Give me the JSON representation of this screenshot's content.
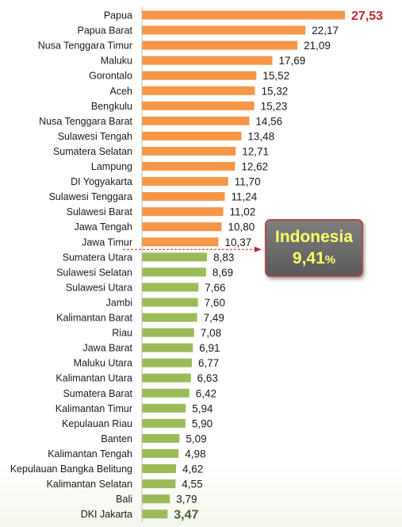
{
  "chart_data": {
    "type": "bar",
    "orientation": "horizontal",
    "categories": [
      "Papua",
      "Papua Barat",
      "Nusa Tenggara Timur",
      "Maluku",
      "Gorontalo",
      "Aceh",
      "Bengkulu",
      "Nusa Tenggara Barat",
      "Sulawesi Tengah",
      "Sumatera Selatan",
      "Lampung",
      "DI Yogyakarta",
      "Sulawesi Tenggara",
      "Sulawesi Barat",
      "Jawa Tengah",
      "Jawa Timur",
      "Sumatera Utara",
      "Sulawesi Selatan",
      "Sulawesi Utara",
      "Jambi",
      "Kalimantan Barat",
      "Riau",
      "Jawa Barat",
      "Maluku Utara",
      "Kalimantan Utara",
      "Sumatera Barat",
      "Kalimantan Timur",
      "Kepulauan Riau",
      "Banten",
      "Kalimantan Tengah",
      "Kepulauan Bangka Belitung",
      "Kalimantan Selatan",
      "Bali",
      "DKI Jakarta"
    ],
    "values": [
      27.53,
      22.17,
      21.09,
      17.69,
      15.52,
      15.32,
      15.23,
      14.56,
      13.48,
      12.71,
      12.62,
      11.7,
      11.24,
      11.02,
      10.8,
      10.37,
      8.83,
      8.69,
      7.66,
      7.6,
      7.49,
      7.08,
      6.91,
      6.77,
      6.63,
      6.42,
      5.94,
      5.9,
      5.09,
      4.98,
      4.62,
      4.55,
      3.79,
      3.47
    ],
    "value_labels": [
      "27,53",
      "22,17",
      "21,09",
      "17,69",
      "15,52",
      "15,32",
      "15,23",
      "14,56",
      "13,48",
      "12,71",
      "12,62",
      "11,70",
      "11,24",
      "11,02",
      "10,80",
      "10,37",
      "8,83",
      "8,69",
      "7,66",
      "7,60",
      "7,49",
      "7,08",
      "6,91",
      "6,77",
      "6,63",
      "6,42",
      "5,94",
      "5,90",
      "5,09",
      "4,98",
      "4,62",
      "4,55",
      "3,79",
      "3,47"
    ],
    "xlim": [
      0,
      29.4
    ],
    "reference": {
      "value": 9.41
    },
    "colors": {
      "above_reference": "#f79646",
      "below_reference": "#9bbb59",
      "max_label": "#c0282d",
      "min_label": "#4f6228",
      "reference_line": "#c0282d",
      "axis": "#bfbfbf"
    },
    "grid": false,
    "legend": "none"
  },
  "callout": {
    "title": "Indonesia",
    "value": "9,41",
    "unit": "%",
    "text_color": "#ffff66",
    "background": "#6f6f6f",
    "border": "#b34a4a"
  }
}
